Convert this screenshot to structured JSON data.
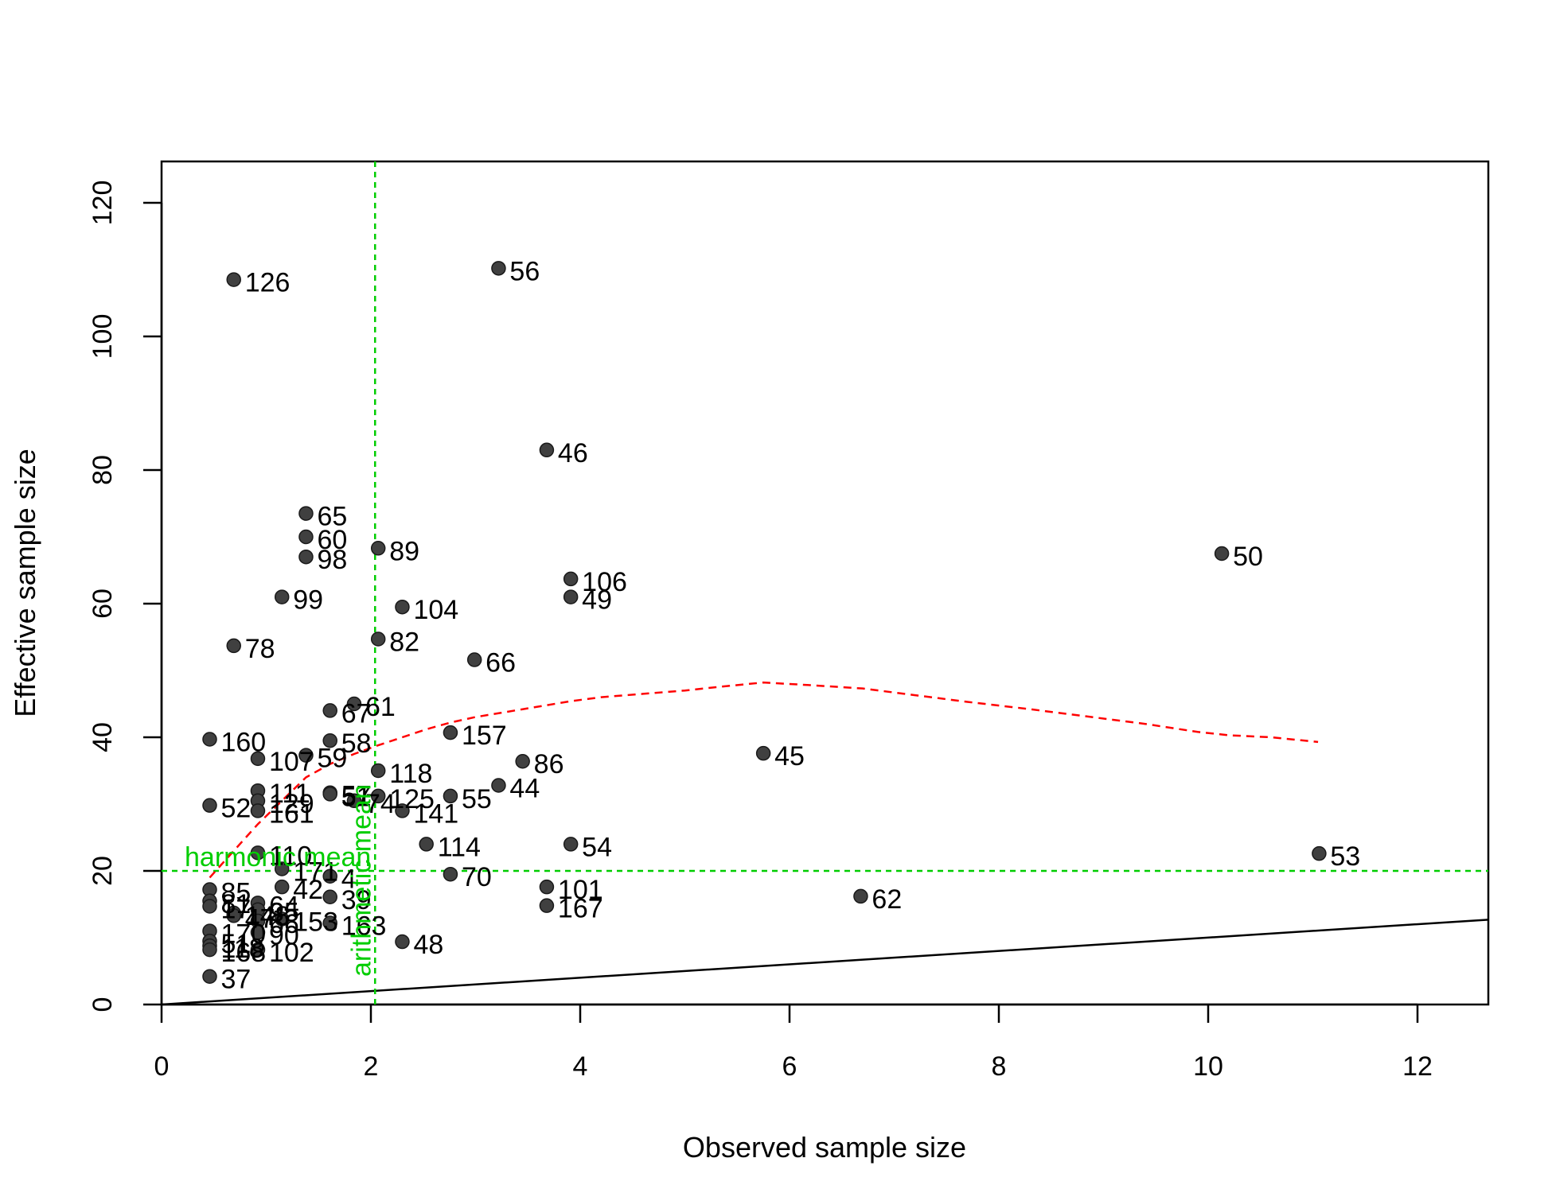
{
  "chart_data": {
    "type": "scatter",
    "xlabel": "Observed sample size",
    "ylabel": "Effective sample size",
    "xlim": [
      0,
      12.7
    ],
    "ylim": [
      0,
      120
    ],
    "x_ticks": [
      "0",
      "2",
      "4",
      "6",
      "8",
      "10",
      "12"
    ],
    "y_ticks": [
      "0",
      "20",
      "40",
      "60",
      "80",
      "100",
      "120"
    ],
    "grid": false,
    "point_color": "#404040",
    "identity_line": {
      "from": [
        0,
        0
      ],
      "to": [
        12.7,
        12.7
      ],
      "color": "#000000"
    },
    "harmonic_mean": {
      "label": "harmonic mean",
      "y": 20,
      "color": "#00cd00"
    },
    "arithmetic_mean": {
      "label": "arithmetic mean",
      "x": 2.04,
      "color": "#00cd00"
    },
    "trend_line": {
      "color": "#ff0000",
      "x": [
        0.46,
        0.69,
        0.92,
        1.15,
        1.38,
        1.61,
        1.84,
        2.07,
        2.3,
        2.53,
        2.76,
        2.99,
        3.22,
        3.45,
        3.68,
        3.91,
        4.2,
        4.6,
        5.0,
        5.3,
        5.75,
        6.2,
        6.7,
        7.2,
        7.7,
        8.3,
        8.9,
        9.4,
        9.9,
        10.2,
        10.6,
        11.05
      ],
      "y": [
        19,
        23,
        27,
        30.5,
        34,
        36,
        37.5,
        38.8,
        40,
        41.2,
        42.2,
        43,
        43.6,
        44.2,
        44.8,
        45.4,
        46,
        46.5,
        47,
        47.5,
        48.2,
        47.8,
        47.3,
        46.3,
        45.3,
        44.2,
        43,
        42,
        40.8,
        40.3,
        40,
        39.3
      ]
    },
    "points": [
      {
        "label": "126",
        "x": 0.69,
        "y": 108.5
      },
      {
        "label": "56",
        "x": 3.22,
        "y": 110.2
      },
      {
        "label": "46",
        "x": 3.68,
        "y": 83
      },
      {
        "label": "65",
        "x": 1.38,
        "y": 73.5
      },
      {
        "label": "60",
        "x": 1.38,
        "y": 70
      },
      {
        "label": "98",
        "x": 1.38,
        "y": 67
      },
      {
        "label": "89",
        "x": 2.07,
        "y": 68.3
      },
      {
        "label": "106",
        "x": 3.91,
        "y": 63.7
      },
      {
        "label": "49",
        "x": 3.91,
        "y": 61
      },
      {
        "label": "50",
        "x": 10.13,
        "y": 67.5
      },
      {
        "label": "99",
        "x": 1.15,
        "y": 61
      },
      {
        "label": "104",
        "x": 2.3,
        "y": 59.5
      },
      {
        "label": "78",
        "x": 0.69,
        "y": 53.7
      },
      {
        "label": "82",
        "x": 2.07,
        "y": 54.7
      },
      {
        "label": "66",
        "x": 2.99,
        "y": 51.6
      },
      {
        "label": "61",
        "x": 1.84,
        "y": 45
      },
      {
        "label": "67",
        "x": 1.61,
        "y": 44
      },
      {
        "label": "160",
        "x": 0.46,
        "y": 39.7
      },
      {
        "label": "157",
        "x": 2.76,
        "y": 40.7
      },
      {
        "label": "58",
        "x": 1.61,
        "y": 39.5
      },
      {
        "label": "45",
        "x": 5.75,
        "y": 37.6
      },
      {
        "label": "107",
        "x": 0.92,
        "y": 36.8
      },
      {
        "label": "59",
        "x": 1.38,
        "y": 37.3
      },
      {
        "label": "86",
        "x": 3.45,
        "y": 36.4
      },
      {
        "label": "118",
        "x": 2.07,
        "y": 35
      },
      {
        "label": "44",
        "x": 3.22,
        "y": 32.8
      },
      {
        "label": "111",
        "x": 0.92,
        "y": 32
      },
      {
        "label": "57",
        "x": 1.61,
        "y": 31.7
      },
      {
        "label": "51",
        "x": 1.61,
        "y": 31.5
      },
      {
        "label": "125",
        "x": 2.07,
        "y": 31.2
      },
      {
        "label": "74",
        "x": 1.84,
        "y": 30.5
      },
      {
        "label": "55",
        "x": 2.76,
        "y": 31.2
      },
      {
        "label": "129",
        "x": 0.92,
        "y": 30.5
      },
      {
        "label": "52",
        "x": 0.46,
        "y": 29.8
      },
      {
        "label": "161",
        "x": 0.92,
        "y": 29
      },
      {
        "label": "141",
        "x": 2.3,
        "y": 29
      },
      {
        "label": "54",
        "x": 3.91,
        "y": 24
      },
      {
        "label": "114",
        "x": 2.53,
        "y": 24
      },
      {
        "label": "110",
        "x": 0.92,
        "y": 22.7
      },
      {
        "label": "53",
        "x": 11.06,
        "y": 22.6
      },
      {
        "label": "171",
        "x": 1.15,
        "y": 20.3
      },
      {
        "label": "70",
        "x": 2.76,
        "y": 19.5
      },
      {
        "label": "4",
        "x": 1.61,
        "y": 19.2
      },
      {
        "label": "42",
        "x": 1.15,
        "y": 17.6
      },
      {
        "label": "101",
        "x": 3.68,
        "y": 17.6
      },
      {
        "label": "85",
        "x": 0.46,
        "y": 17.2
      },
      {
        "label": "39",
        "x": 1.61,
        "y": 16.1
      },
      {
        "label": "62",
        "x": 6.68,
        "y": 16.2
      },
      {
        "label": "81",
        "x": 0.46,
        "y": 15.5
      },
      {
        "label": "64",
        "x": 0.92,
        "y": 15.2
      },
      {
        "label": "167",
        "x": 3.68,
        "y": 14.8
      },
      {
        "label": "17",
        "x": 0.46,
        "y": 14.7
      },
      {
        "label": "35",
        "x": 0.92,
        "y": 14.2
      },
      {
        "label": "148",
        "x": 0.69,
        "y": 13.7
      },
      {
        "label": "47",
        "x": 0.69,
        "y": 13.3
      },
      {
        "label": "153",
        "x": 1.15,
        "y": 12.8
      },
      {
        "label": "66",
        "x": 0.92,
        "y": 12.5
      },
      {
        "label": "163",
        "x": 1.61,
        "y": 12.2
      },
      {
        "label": "90",
        "x": 0.92,
        "y": 10.8
      },
      {
        "label": "170",
        "x": 0.46,
        "y": 11
      },
      {
        "label": "48",
        "x": 2.3,
        "y": 9.4
      },
      {
        "label": "51",
        "x": 0.46,
        "y": 9.5
      },
      {
        "label": "118",
        "x": 0.46,
        "y": 8.8
      },
      {
        "label": "102",
        "x": 0.92,
        "y": 8.2
      },
      {
        "label": "168",
        "x": 0.46,
        "y": 8.2
      },
      {
        "label": "37",
        "x": 0.46,
        "y": 4.2
      }
    ]
  }
}
